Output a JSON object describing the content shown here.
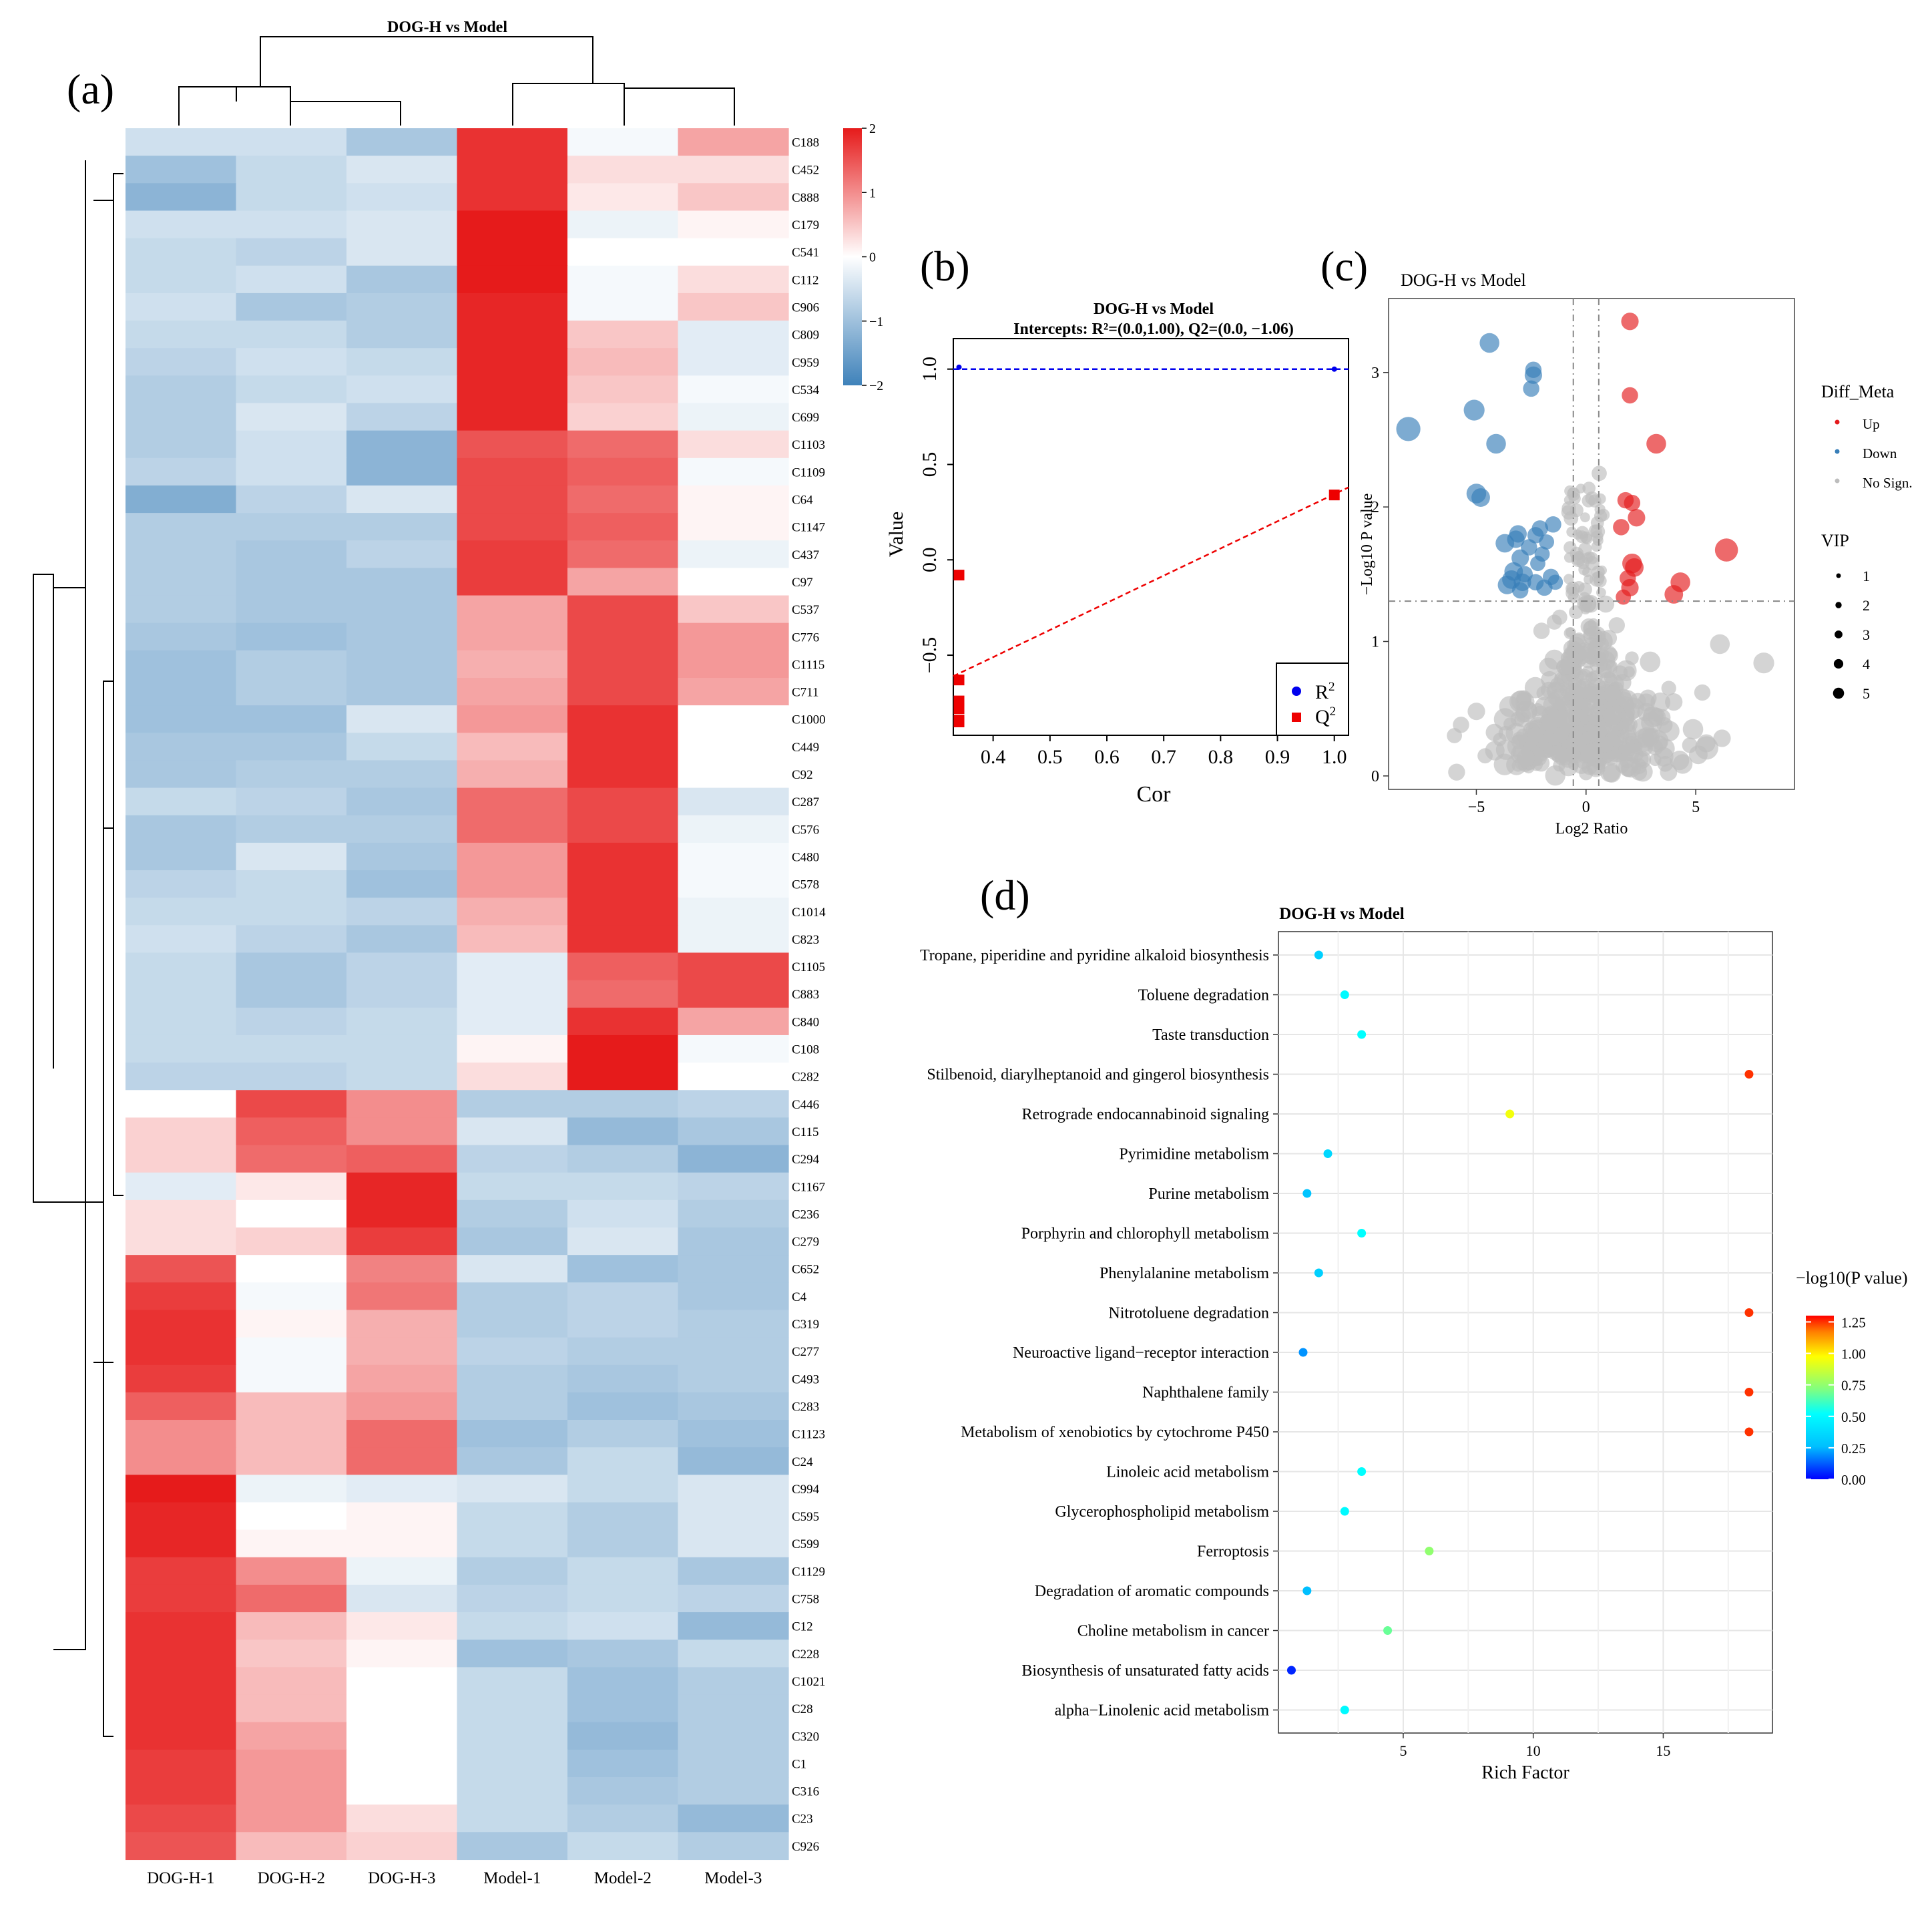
{
  "panel_labels": {
    "a": "(a)",
    "b": "(b)",
    "c": "(c)",
    "d": "(d)"
  },
  "colors": {
    "heat_neg": "#3f82ba",
    "heat_mid": "#ffffff",
    "heat_pos": "#e61b1b",
    "up": "#e41a1c",
    "down": "#377eb8",
    "nosign": "#bdbdbd",
    "r2": "#0000ee",
    "q2": "#ee0000",
    "panel_bg": "#ebebeb"
  },
  "chart_data": [
    {
      "id": "heatmap",
      "type": "heatmap",
      "title": "DOG-H vs Model",
      "columns": [
        "DOG-H-1",
        "DOG-H-2",
        "DOG-H-3",
        "Model-1",
        "Model-2",
        "Model-3"
      ],
      "rows": [
        "C188",
        "C452",
        "C888",
        "C179",
        "C541",
        "C112",
        "C906",
        "C809",
        "C959",
        "C534",
        "C699",
        "C1103",
        "C1109",
        "C64",
        "C1147",
        "C437",
        "C97",
        "C537",
        "C776",
        "C1115",
        "C711",
        "C1000",
        "C449",
        "C92",
        "C287",
        "C576",
        "C480",
        "C578",
        "C1014",
        "C823",
        "C1105",
        "C883",
        "C840",
        "C108",
        "C282",
        "C446",
        "C115",
        "C294",
        "C1167",
        "C236",
        "C279",
        "C652",
        "C4",
        "C319",
        "C277",
        "C493",
        "C283",
        "C1123",
        "C24",
        "C994",
        "C595",
        "C599",
        "C1129",
        "C758",
        "C12",
        "C228",
        "C1021",
        "C28",
        "C320",
        "C1",
        "C316",
        "C23",
        "C926"
      ],
      "values": [
        [
          -0.5,
          -0.5,
          -0.9,
          1.8,
          -0.1,
          0.8
        ],
        [
          -1.0,
          -0.6,
          -0.4,
          1.8,
          0.3,
          0.3
        ],
        [
          -1.2,
          -0.6,
          -0.5,
          1.8,
          0.2,
          0.5
        ],
        [
          -0.5,
          -0.5,
          -0.4,
          2.0,
          -0.2,
          0.1
        ],
        [
          -0.6,
          -0.7,
          -0.4,
          2.0,
          0.0,
          0.0
        ],
        [
          -0.6,
          -0.5,
          -0.9,
          2.0,
          -0.1,
          0.3
        ],
        [
          -0.5,
          -0.9,
          -0.8,
          1.9,
          -0.1,
          0.5
        ],
        [
          -0.6,
          -0.6,
          -0.8,
          1.9,
          0.5,
          -0.3
        ],
        [
          -0.7,
          -0.5,
          -0.6,
          1.9,
          0.6,
          -0.3
        ],
        [
          -0.8,
          -0.6,
          -0.5,
          1.9,
          0.5,
          -0.1
        ],
        [
          -0.8,
          -0.4,
          -0.7,
          1.9,
          0.4,
          -0.2
        ],
        [
          -0.8,
          -0.5,
          -1.2,
          1.5,
          1.3,
          0.3
        ],
        [
          -0.7,
          -0.5,
          -1.2,
          1.6,
          1.4,
          -0.1
        ],
        [
          -1.3,
          -0.7,
          -0.4,
          1.6,
          1.3,
          0.1
        ],
        [
          -0.8,
          -0.8,
          -0.8,
          1.6,
          1.4,
          0.1
        ],
        [
          -0.8,
          -0.9,
          -0.7,
          1.7,
          1.3,
          -0.2
        ],
        [
          -0.8,
          -0.9,
          -0.9,
          1.7,
          0.8,
          0.0
        ],
        [
          -0.8,
          -0.9,
          -0.9,
          0.8,
          1.6,
          0.5
        ],
        [
          -0.9,
          -1.0,
          -0.9,
          0.8,
          1.6,
          0.9
        ],
        [
          -1.0,
          -0.8,
          -0.9,
          0.7,
          1.6,
          0.9
        ],
        [
          -1.0,
          -0.8,
          -0.9,
          0.8,
          1.6,
          0.8
        ],
        [
          -1.0,
          -1.0,
          -0.4,
          0.9,
          1.8,
          0.0
        ],
        [
          -0.9,
          -0.9,
          -0.6,
          0.6,
          1.8,
          0.0
        ],
        [
          -0.9,
          -0.8,
          -0.8,
          0.7,
          1.8,
          0.0
        ],
        [
          -0.6,
          -0.7,
          -0.9,
          1.3,
          1.6,
          -0.4
        ],
        [
          -0.9,
          -0.8,
          -0.8,
          1.3,
          1.6,
          -0.2
        ],
        [
          -0.9,
          -0.4,
          -0.9,
          0.9,
          1.8,
          -0.1
        ],
        [
          -0.7,
          -0.6,
          -1.0,
          0.9,
          1.8,
          -0.1
        ],
        [
          -0.6,
          -0.6,
          -0.7,
          0.7,
          1.8,
          -0.2
        ],
        [
          -0.5,
          -0.7,
          -0.9,
          0.6,
          1.8,
          -0.2
        ],
        [
          -0.6,
          -0.9,
          -0.7,
          -0.3,
          1.4,
          1.6
        ],
        [
          -0.6,
          -0.9,
          -0.7,
          -0.3,
          1.3,
          1.6
        ],
        [
          -0.6,
          -0.7,
          -0.6,
          -0.3,
          1.8,
          0.8
        ],
        [
          -0.6,
          -0.6,
          -0.6,
          0.1,
          2.0,
          -0.1
        ],
        [
          -0.7,
          -0.7,
          -0.6,
          0.3,
          2.0,
          0.0
        ],
        [
          0.0,
          1.6,
          1.0,
          -0.8,
          -0.8,
          -0.7
        ],
        [
          0.4,
          1.4,
          1.0,
          -0.4,
          -1.1,
          -0.9
        ],
        [
          0.4,
          1.3,
          1.4,
          -0.7,
          -0.8,
          -1.2
        ],
        [
          -0.3,
          0.2,
          1.9,
          -0.6,
          -0.6,
          -0.7
        ],
        [
          0.3,
          0.0,
          1.9,
          -0.8,
          -0.5,
          -0.8
        ],
        [
          0.3,
          0.4,
          1.7,
          -0.9,
          -0.4,
          -0.9
        ],
        [
          1.5,
          0.0,
          1.1,
          -0.4,
          -1.0,
          -0.9
        ],
        [
          1.7,
          -0.1,
          1.2,
          -0.8,
          -0.7,
          -0.9
        ],
        [
          1.8,
          0.1,
          0.7,
          -0.8,
          -0.7,
          -0.8
        ],
        [
          1.8,
          -0.1,
          0.7,
          -0.7,
          -0.8,
          -0.8
        ],
        [
          1.7,
          -0.1,
          0.8,
          -0.8,
          -0.9,
          -0.8
        ],
        [
          1.4,
          0.6,
          0.9,
          -0.8,
          -1.0,
          -0.9
        ],
        [
          1.0,
          0.6,
          1.3,
          -1.0,
          -0.8,
          -1.0
        ],
        [
          1.0,
          0.6,
          1.3,
          -0.9,
          -0.6,
          -1.1
        ],
        [
          2.0,
          -0.2,
          -0.3,
          -0.4,
          -0.6,
          -0.4
        ],
        [
          1.9,
          0.0,
          0.1,
          -0.6,
          -0.8,
          -0.4
        ],
        [
          1.9,
          0.1,
          0.1,
          -0.6,
          -0.8,
          -0.4
        ],
        [
          1.7,
          1.0,
          -0.2,
          -0.8,
          -0.6,
          -0.9
        ],
        [
          1.7,
          1.3,
          -0.4,
          -0.7,
          -0.6,
          -0.7
        ],
        [
          1.8,
          0.6,
          0.2,
          -0.6,
          -0.5,
          -1.1
        ],
        [
          1.8,
          0.5,
          0.1,
          -1.0,
          -0.9,
          -0.6
        ],
        [
          1.8,
          0.6,
          0.0,
          -0.6,
          -1.0,
          -0.8
        ],
        [
          1.8,
          0.6,
          0.0,
          -0.6,
          -1.0,
          -0.8
        ],
        [
          1.8,
          0.8,
          0.0,
          -0.6,
          -1.1,
          -0.8
        ],
        [
          1.7,
          0.9,
          0.0,
          -0.6,
          -1.0,
          -0.8
        ],
        [
          1.7,
          0.9,
          0.0,
          -0.6,
          -0.9,
          -0.8
        ],
        [
          1.6,
          0.9,
          0.3,
          -0.6,
          -0.8,
          -1.1
        ],
        [
          1.5,
          0.6,
          0.4,
          -0.9,
          -0.6,
          -0.8
        ]
      ],
      "color_scale": {
        "min": -2,
        "max": 2,
        "ticks": [
          "2",
          "1",
          "0",
          "−1",
          "−2"
        ]
      }
    },
    {
      "id": "permutation",
      "type": "scatter",
      "title": "DOG-H vs Model",
      "subtitle": "Intercepts: R²=(0.0,1.00), Q2=(0.0, −1.06)",
      "xlabel": "Cor",
      "ylabel": "Value",
      "xlim": [
        0.33,
        1.025
      ],
      "ylim": [
        -0.92,
        1.16
      ],
      "x_ticks": [
        "0.4",
        "0.5",
        "0.6",
        "0.7",
        "0.8",
        "0.9",
        "1.0"
      ],
      "x_tick_values": [
        0.4,
        0.5,
        0.6,
        0.7,
        0.8,
        0.9,
        1.0
      ],
      "y_ticks": [
        "1.0",
        "0.5",
        "0.0",
        "−0.5"
      ],
      "y_tick_values": [
        1.0,
        0.5,
        0.0,
        -0.5
      ],
      "series": [
        {
          "name": "R²",
          "label_base": "R",
          "label_sup": "2",
          "marker": "circle",
          "x": [
            0.34,
            1.0
          ],
          "y": [
            1.01,
            1.0
          ],
          "fit_x": [
            0.33,
            1.025
          ],
          "fit_y": [
            1.0,
            1.0
          ]
        },
        {
          "name": "Q²",
          "label_base": "Q",
          "label_sup": "2",
          "marker": "square",
          "x": [
            0.34,
            0.34,
            0.34,
            0.34,
            0.34,
            0.34,
            1.0
          ],
          "y": [
            -0.08,
            -0.63,
            -0.74,
            -0.78,
            -0.84,
            -0.85,
            0.34
          ],
          "fit_x": [
            0.33,
            1.025
          ],
          "fit_y": [
            -0.61,
            0.38
          ]
        }
      ]
    },
    {
      "id": "volcano",
      "type": "scatter",
      "title": "DOG-H vs Model",
      "xlabel": "Log2 Ratio",
      "ylabel": "−Log10 P value",
      "xlim": [
        -9,
        9.5
      ],
      "ylim": [
        -0.1,
        3.55
      ],
      "x_ticks": [
        "−5",
        "0",
        "5"
      ],
      "x_tick_values": [
        -5,
        0,
        5
      ],
      "y_ticks": [
        "0",
        "1",
        "2",
        "3"
      ],
      "y_tick_values": [
        0,
        1,
        2,
        3
      ],
      "vlines": [
        -0.58,
        0.58
      ],
      "hline": 1.3,
      "legend_title": "Diff_Meta",
      "legend_items": [
        "Up",
        "Down",
        "No Sign."
      ],
      "size_legend_title": "VIP",
      "size_legend_items": [
        "1",
        "2",
        "3",
        "4",
        "5"
      ],
      "up_points": [
        [
          2.0,
          3.38,
          2.4
        ],
        [
          2.0,
          2.83,
          2.2
        ],
        [
          3.2,
          2.47,
          2.8
        ],
        [
          1.8,
          2.05,
          2.2
        ],
        [
          2.1,
          2.03,
          2.2
        ],
        [
          2.3,
          1.92,
          2.4
        ],
        [
          1.6,
          1.85,
          2.2
        ],
        [
          6.4,
          1.68,
          3.4
        ],
        [
          2.1,
          1.58,
          2.8
        ],
        [
          2.2,
          1.55,
          2.6
        ],
        [
          1.9,
          1.47,
          2.2
        ],
        [
          4.3,
          1.44,
          2.8
        ],
        [
          2.0,
          1.4,
          2.4
        ],
        [
          4.0,
          1.35,
          2.6
        ],
        [
          1.7,
          1.33,
          2.0
        ]
      ],
      "down_points": [
        [
          -4.4,
          3.22,
          2.8
        ],
        [
          -2.4,
          3.02,
          2.2
        ],
        [
          -2.4,
          2.98,
          2.4
        ],
        [
          -2.5,
          2.88,
          2.2
        ],
        [
          -5.1,
          2.72,
          3.0
        ],
        [
          -8.1,
          2.58,
          3.6
        ],
        [
          -4.1,
          2.47,
          2.8
        ],
        [
          -5.0,
          2.1,
          2.8
        ],
        [
          -4.8,
          2.07,
          2.6
        ],
        [
          -1.5,
          1.87,
          2.2
        ],
        [
          -2.1,
          1.84,
          2.2
        ],
        [
          -3.1,
          1.8,
          2.4
        ],
        [
          -3.2,
          1.76,
          2.4
        ],
        [
          -2.3,
          1.79,
          2.2
        ],
        [
          -1.8,
          1.74,
          2.0
        ],
        [
          -3.7,
          1.73,
          2.6
        ],
        [
          -2.6,
          1.7,
          2.2
        ],
        [
          -2.0,
          1.65,
          2.0
        ],
        [
          -3.0,
          1.62,
          2.4
        ],
        [
          -2.2,
          1.58,
          2.0
        ],
        [
          -3.3,
          1.52,
          2.6
        ],
        [
          -2.8,
          1.5,
          2.2
        ],
        [
          -1.6,
          1.48,
          2.2
        ],
        [
          -3.4,
          1.46,
          2.6
        ],
        [
          -2.9,
          1.44,
          2.4
        ],
        [
          -2.3,
          1.44,
          2.2
        ],
        [
          -1.4,
          1.44,
          2.0
        ],
        [
          -3.6,
          1.42,
          2.6
        ],
        [
          -1.9,
          1.4,
          2.2
        ],
        [
          -3.0,
          1.38,
          2.2
        ]
      ],
      "nosign_extra": [
        [
          0.6,
          2.25,
          2.0
        ],
        [
          6.1,
          0.98,
          2.8
        ],
        [
          8.1,
          0.84,
          3.0
        ],
        [
          6.2,
          0.28,
          2.4
        ],
        [
          -5.0,
          0.48,
          2.4
        ],
        [
          -5.7,
          0.38,
          2.2
        ],
        [
          4.0,
          0.55,
          2.4
        ],
        [
          -4.6,
          0.15,
          2.0
        ],
        [
          5.3,
          0.62,
          2.2
        ],
        [
          -6.0,
          0.3,
          2.0
        ],
        [
          0.0,
          0.02,
          1.8
        ],
        [
          1.4,
          1.12,
          2.2
        ],
        [
          -1.2,
          1.18,
          2.0
        ]
      ]
    },
    {
      "id": "kegg",
      "type": "scatter",
      "title": "DOG-H vs Model",
      "xlabel": "Rich Factor",
      "xlim": [
        0.2,
        19.2
      ],
      "x_ticks": [
        "5",
        "10",
        "15"
      ],
      "x_tick_values": [
        5,
        10,
        15
      ],
      "color_legend_title": "−log10(P value)",
      "color_ticks": [
        "1.25",
        "1.00",
        "0.75",
        "0.50",
        "0.25",
        "0.00"
      ],
      "color_tick_values": [
        1.25,
        1.0,
        0.75,
        0.5,
        0.25,
        0.0
      ],
      "color_range": [
        0,
        1.3
      ],
      "categories": [
        "Tropane, piperidine and pyridine alkaloid biosynthesis",
        "Toluene degradation",
        "Taste transduction",
        "Stilbenoid, diarylheptanoid and gingerol biosynthesis",
        "Retrograde endocannabinoid signaling",
        "Pyrimidine metabolism",
        "Purine metabolism",
        "Porphyrin and chlorophyll metabolism",
        "Phenylalanine metabolism",
        "Nitrotoluene degradation",
        "Neuroactive ligand−receptor interaction",
        "Naphthalene family",
        "Metabolism of xenobiotics by cytochrome P450",
        "Linoleic acid metabolism",
        "Glycerophospholipid metabolism",
        "Ferroptosis",
        "Degradation of aromatic compounds",
        "Choline metabolism in cancer",
        "Biosynthesis of unsaturated fatty acids",
        "alpha−Linolenic acid metabolism"
      ],
      "rich_factor": [
        1.75,
        2.75,
        3.4,
        18.3,
        9.1,
        2.1,
        1.3,
        3.4,
        1.75,
        18.3,
        1.15,
        18.3,
        18.3,
        3.4,
        2.75,
        6.0,
        1.3,
        4.4,
        0.7,
        2.75
      ],
      "neg_log10_p": [
        0.33,
        0.5,
        0.52,
        1.25,
        0.95,
        0.36,
        0.28,
        0.52,
        0.33,
        1.25,
        0.2,
        1.25,
        1.25,
        0.52,
        0.5,
        0.75,
        0.26,
        0.68,
        0.05,
        0.5
      ]
    }
  ]
}
